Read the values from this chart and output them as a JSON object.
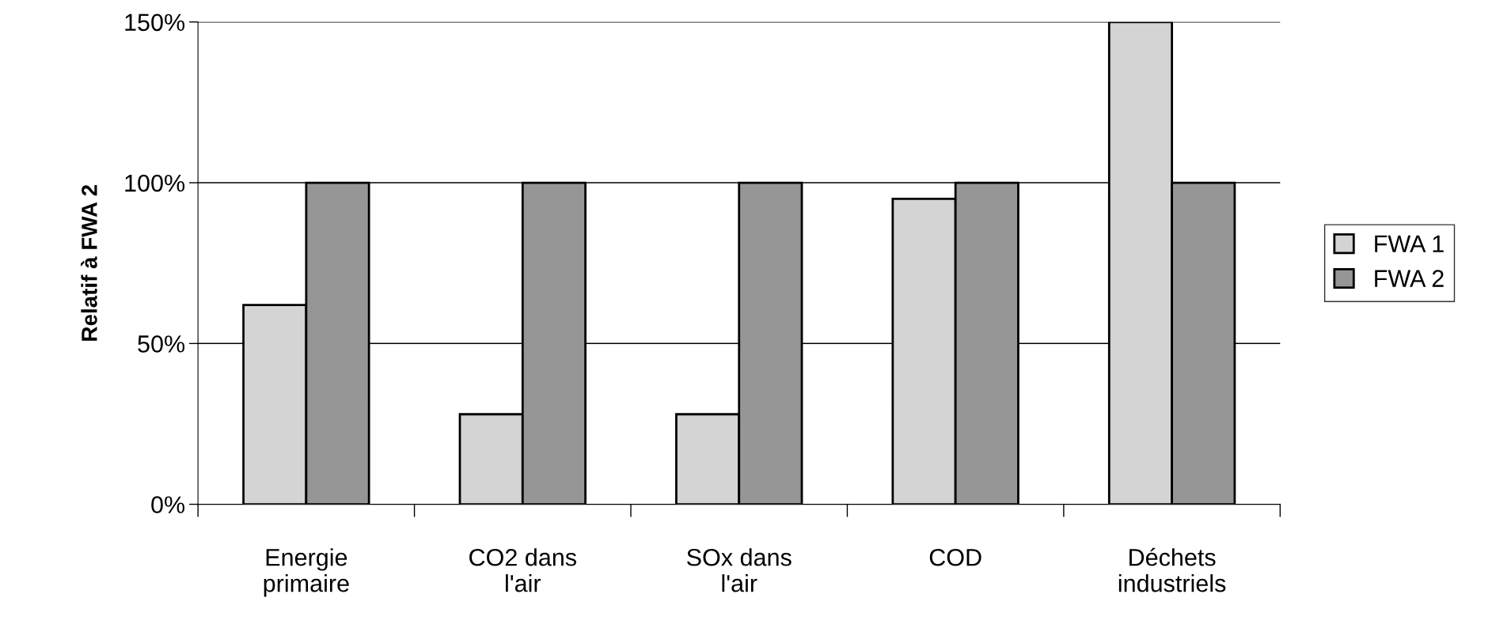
{
  "chart_data": {
    "type": "bar",
    "ylabel": "Relatif à FWA 2",
    "categories": [
      "Energie\nprimaire",
      "CO2 dans\nl'air",
      "SOx dans\nl'air",
      "COD",
      "Déchets\nindustriels"
    ],
    "series": [
      {
        "name": "FWA 1",
        "color": "#d4d4d4",
        "values": [
          62,
          28,
          28,
          95,
          150
        ]
      },
      {
        "name": "FWA 2",
        "color": "#969696",
        "values": [
          100,
          100,
          100,
          100,
          100
        ]
      }
    ],
    "ylim": [
      0,
      150
    ],
    "yticks": [
      {
        "value": 0,
        "label": "0%"
      },
      {
        "value": 50,
        "label": "50%"
      },
      {
        "value": 100,
        "label": "100%"
      },
      {
        "value": 150,
        "label": "150%"
      }
    ],
    "grid": "y",
    "legend": "right"
  }
}
